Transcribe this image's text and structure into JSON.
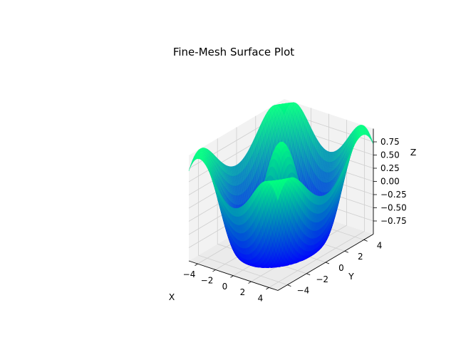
{
  "chart_data": {
    "type": "surface",
    "title": "Fine-Mesh Surface Plot",
    "xlabel": "X",
    "ylabel": "Y",
    "zlabel": "Z",
    "function": "z = cos(sqrt(x^2 + y^2))",
    "x_range": [
      -5,
      5
    ],
    "y_range": [
      -5,
      5
    ],
    "zlim": [
      -1,
      1
    ],
    "x_ticks": [
      "−4",
      "−2",
      "0",
      "2",
      "4"
    ],
    "y_ticks": [
      "−4",
      "−2",
      "0",
      "2",
      "4"
    ],
    "z_ticks": [
      "−0.75",
      "−0.50",
      "−0.25",
      "0.00",
      "0.25",
      "0.50",
      "0.75"
    ],
    "grid": true,
    "colormap": {
      "low": "#0000ff",
      "high": "#00ff80",
      "name": "winter"
    },
    "pane_color": "#f2f2f2"
  }
}
